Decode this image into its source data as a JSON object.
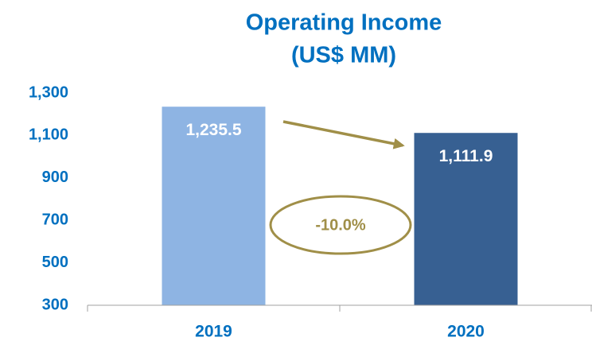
{
  "chart_data": {
    "type": "bar",
    "title": "Operating Income",
    "subtitle": "(US$ MM)",
    "categories": [
      "2019",
      "2020"
    ],
    "values": [
      1235.5,
      1111.9
    ],
    "value_labels": [
      "1,235.5",
      "1,111.9"
    ],
    "colors": [
      "#8eb4e3",
      "#376092"
    ],
    "ylim": [
      300,
      1300
    ],
    "yticks": [
      300,
      500,
      700,
      900,
      {
        "value": 1100,
        "label": "1,100"
      },
      {
        "value": 1300,
        "label": "1,300"
      }
    ],
    "annotation": "-10.0%"
  }
}
